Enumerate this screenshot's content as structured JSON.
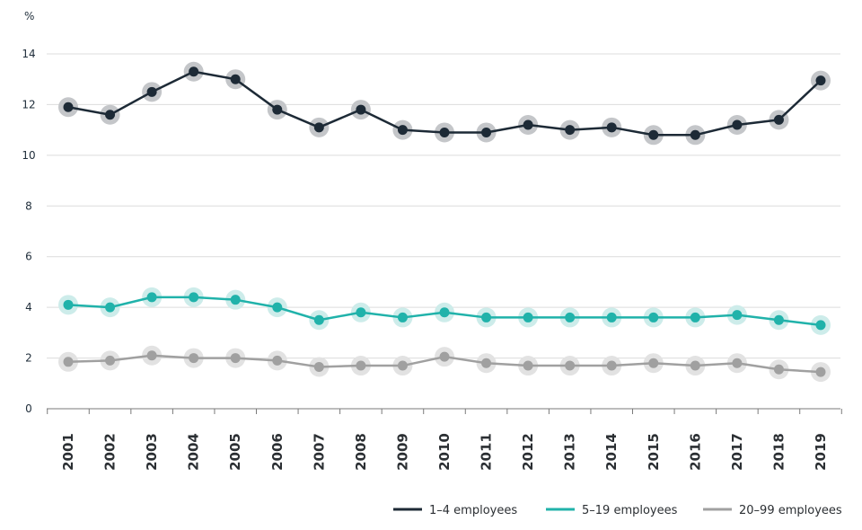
{
  "chart_data": {
    "type": "line",
    "ylabel": "%",
    "ylim": [
      0,
      14
    ],
    "yticks": [
      "0",
      "2",
      "4",
      "6",
      "8",
      "10",
      "12",
      "14"
    ],
    "x": [
      "2001",
      "2002",
      "2003",
      "2004",
      "2005",
      "2006",
      "2007",
      "2008",
      "2009",
      "2010",
      "2011",
      "2012",
      "2013",
      "2014",
      "2015",
      "2016",
      "2017",
      "2018",
      "2019"
    ],
    "grid": true,
    "legend_position": "bottom-right",
    "series": [
      {
        "name": "1–4 employees",
        "color": "#1d2a36",
        "halo": "#c4c6c9",
        "values": [
          11.9,
          11.6,
          12.5,
          13.3,
          13.0,
          11.8,
          11.1,
          11.8,
          11.0,
          10.9,
          10.9,
          11.2,
          11.0,
          11.1,
          10.8,
          10.8,
          11.2,
          11.4,
          12.95
        ]
      },
      {
        "name": "5–19 employees",
        "color": "#20b2aa",
        "halo": "#cdecea",
        "values": [
          4.1,
          4.0,
          4.4,
          4.4,
          4.3,
          4.0,
          3.5,
          3.8,
          3.6,
          3.8,
          3.6,
          3.6,
          3.6,
          3.6,
          3.6,
          3.6,
          3.7,
          3.5,
          3.3
        ]
      },
      {
        "name": "20–99 employees",
        "color": "#a0a0a0",
        "halo": "#e2e2e2",
        "values": [
          1.85,
          1.9,
          2.1,
          2.0,
          2.0,
          1.9,
          1.65,
          1.7,
          1.7,
          2.05,
          1.8,
          1.7,
          1.7,
          1.7,
          1.8,
          1.7,
          1.8,
          1.55,
          1.45
        ]
      }
    ]
  }
}
